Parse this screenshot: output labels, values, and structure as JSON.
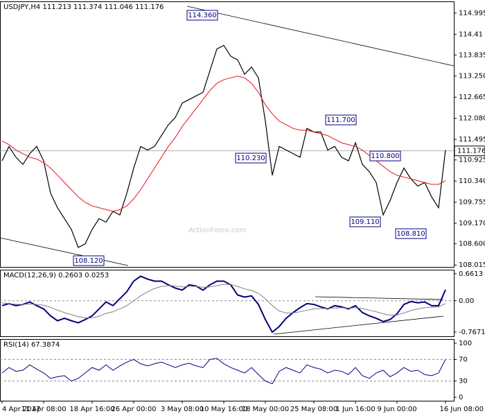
{
  "chart_data": [
    {
      "type": "line",
      "title": "USDJPY,H4  111.213 111.374 111.046 111.176",
      "watermark": "ActionForex.com",
      "ylim": [
        107.96,
        115.32
      ],
      "yticks": [
        114.995,
        114.41,
        {
          "value": 113.835,
          "label": "113.835"
        },
        {
          "value": 113.25,
          "label": "113.250"
        },
        112.665,
        {
          "value": 112.08,
          "label": "112.080"
        },
        111.495,
        110.925,
        {
          "value": 110.34,
          "label": "110.340"
        },
        109.755,
        {
          "value": 109.17,
          "label": "109.170"
        },
        {
          "value": 108.6,
          "label": "108.600"
        },
        108.015
      ],
      "yticks_fix": null,
      "last_price": 111.176,
      "annotations": [
        "114.360",
        "108.120",
        "110.230",
        "111.700",
        "110.800",
        "109.110",
        "108.810"
      ],
      "series": [
        {
          "color": "#000000",
          "values": [
            110.9,
            111.3,
            111.0,
            110.8,
            111.1,
            111.3,
            110.9,
            110.0,
            109.6,
            109.3,
            109.0,
            108.5,
            108.6,
            109.0,
            109.3,
            109.2,
            109.5,
            109.4,
            110.0,
            110.7,
            111.3,
            111.2,
            111.3,
            111.6,
            111.9,
            112.1,
            112.5,
            112.6,
            112.7,
            112.8,
            113.4,
            114.0,
            114.1,
            113.8,
            113.7,
            113.3,
            113.5,
            113.2,
            112.0,
            110.5,
            111.3,
            111.2,
            111.1,
            111.0,
            111.8,
            111.7,
            111.7,
            111.2,
            111.3,
            111.0,
            110.9,
            111.4,
            110.8,
            110.6,
            110.3,
            109.4,
            109.8,
            110.3,
            110.7,
            110.4,
            110.2,
            110.3,
            109.9,
            109.6,
            111.2
          ]
        },
        {
          "color": "#e8141c",
          "values": [
            111.45,
            111.35,
            111.2,
            111.1,
            111.0,
            110.95,
            110.85,
            110.7,
            110.5,
            110.3,
            110.1,
            109.9,
            109.75,
            109.65,
            109.6,
            109.55,
            109.5,
            109.55,
            109.65,
            109.85,
            110.1,
            110.4,
            110.7,
            111.0,
            111.3,
            111.55,
            111.85,
            112.1,
            112.35,
            112.6,
            112.85,
            113.05,
            113.15,
            113.2,
            113.25,
            113.2,
            113.05,
            112.8,
            112.45,
            112.2,
            112.0,
            111.9,
            111.8,
            111.75,
            111.75,
            111.7,
            111.65,
            111.6,
            111.5,
            111.4,
            111.35,
            111.3,
            111.2,
            111.05,
            110.9,
            110.75,
            110.6,
            110.5,
            110.45,
            110.4,
            110.35,
            110.3,
            110.25,
            110.25,
            110.35
          ]
        }
      ]
    },
    {
      "type": "line",
      "title": "MACD(12,26,9) 0.2603 0.0253",
      "ylim": [
        -0.87,
        0.76
      ],
      "yticks": [
        0.6613,
        {
          "value": 0,
          "label": "0.00"
        },
        -0.7671
      ],
      "series": [
        {
          "color": "#000080",
          "values": [
            -0.12,
            -0.07,
            -0.12,
            -0.09,
            -0.03,
            -0.12,
            -0.2,
            -0.37,
            -0.49,
            -0.43,
            -0.49,
            -0.54,
            -0.46,
            -0.37,
            -0.2,
            -0.03,
            -0.12,
            0.05,
            0.22,
            0.48,
            0.6,
            0.53,
            0.48,
            0.48,
            0.39,
            0.31,
            0.26,
            0.39,
            0.36,
            0.26,
            0.39,
            0.48,
            0.48,
            0.39,
            0.14,
            0.09,
            0.12,
            -0.09,
            -0.46,
            -0.77,
            -0.63,
            -0.43,
            -0.29,
            -0.17,
            -0.07,
            -0.09,
            -0.15,
            -0.2,
            -0.12,
            -0.15,
            -0.2,
            -0.12,
            -0.29,
            -0.37,
            -0.43,
            -0.51,
            -0.46,
            -0.32,
            -0.09,
            -0.02,
            -0.05,
            -0.03,
            -0.12,
            -0.12,
            0.27
          ]
        },
        {
          "color": "#808080",
          "values": [
            -0.05,
            -0.07,
            -0.09,
            -0.09,
            -0.08,
            -0.09,
            -0.11,
            -0.16,
            -0.23,
            -0.29,
            -0.34,
            -0.39,
            -0.42,
            -0.42,
            -0.38,
            -0.31,
            -0.27,
            -0.2,
            -0.12,
            0.0,
            0.12,
            0.22,
            0.3,
            0.35,
            0.37,
            0.36,
            0.34,
            0.35,
            0.35,
            0.33,
            0.34,
            0.37,
            0.4,
            0.4,
            0.35,
            0.29,
            0.25,
            0.18,
            0.05,
            -0.12,
            -0.25,
            -0.3,
            -0.3,
            -0.27,
            -0.23,
            -0.2,
            -0.19,
            -0.19,
            -0.18,
            -0.17,
            -0.18,
            -0.17,
            -0.19,
            -0.23,
            -0.27,
            -0.32,
            -0.35,
            -0.35,
            -0.3,
            -0.24,
            -0.2,
            -0.17,
            -0.16,
            -0.15,
            -0.07
          ]
        }
      ]
    },
    {
      "type": "line",
      "title": "RSI(14) 67.3874",
      "ylim": [
        -6.4,
        107.7
      ],
      "yticks": [
        100,
        70,
        30,
        0
      ],
      "categories": [
        "4 Apr 2017",
        null,
        null,
        null,
        null,
        null,
        "11 Apr 08:00",
        null,
        null,
        null,
        null,
        null,
        null,
        "18 Apr 16:00",
        null,
        null,
        null,
        null,
        null,
        "26 Apr 00:00",
        null,
        null,
        null,
        null,
        null,
        null,
        "3 May 08:00",
        null,
        null,
        null,
        null,
        null,
        "10 May 16:00",
        null,
        null,
        null,
        null,
        null,
        "18 May 00:00",
        null,
        null,
        null,
        null,
        null,
        null,
        "25 May 08:00",
        null,
        null,
        null,
        null,
        null,
        "1 Jun 16:00",
        null,
        null,
        null,
        null,
        null,
        "9 Jun 00:00",
        null,
        null,
        null,
        null,
        null,
        null,
        "16 Jun 08:00"
      ],
      "series": [
        {
          "color": "#000080",
          "values": [
            45,
            55,
            48,
            50,
            60,
            52,
            45,
            35,
            38,
            40,
            30,
            35,
            45,
            55,
            50,
            60,
            50,
            58,
            65,
            70,
            62,
            58,
            62,
            65,
            60,
            55,
            60,
            63,
            58,
            55,
            70,
            72,
            62,
            55,
            50,
            45,
            55,
            42,
            30,
            25,
            48,
            55,
            50,
            45,
            60,
            55,
            52,
            45,
            50,
            48,
            42,
            55,
            40,
            35,
            45,
            50,
            38,
            45,
            55,
            48,
            50,
            42,
            40,
            45,
            70
          ]
        }
      ]
    }
  ]
}
